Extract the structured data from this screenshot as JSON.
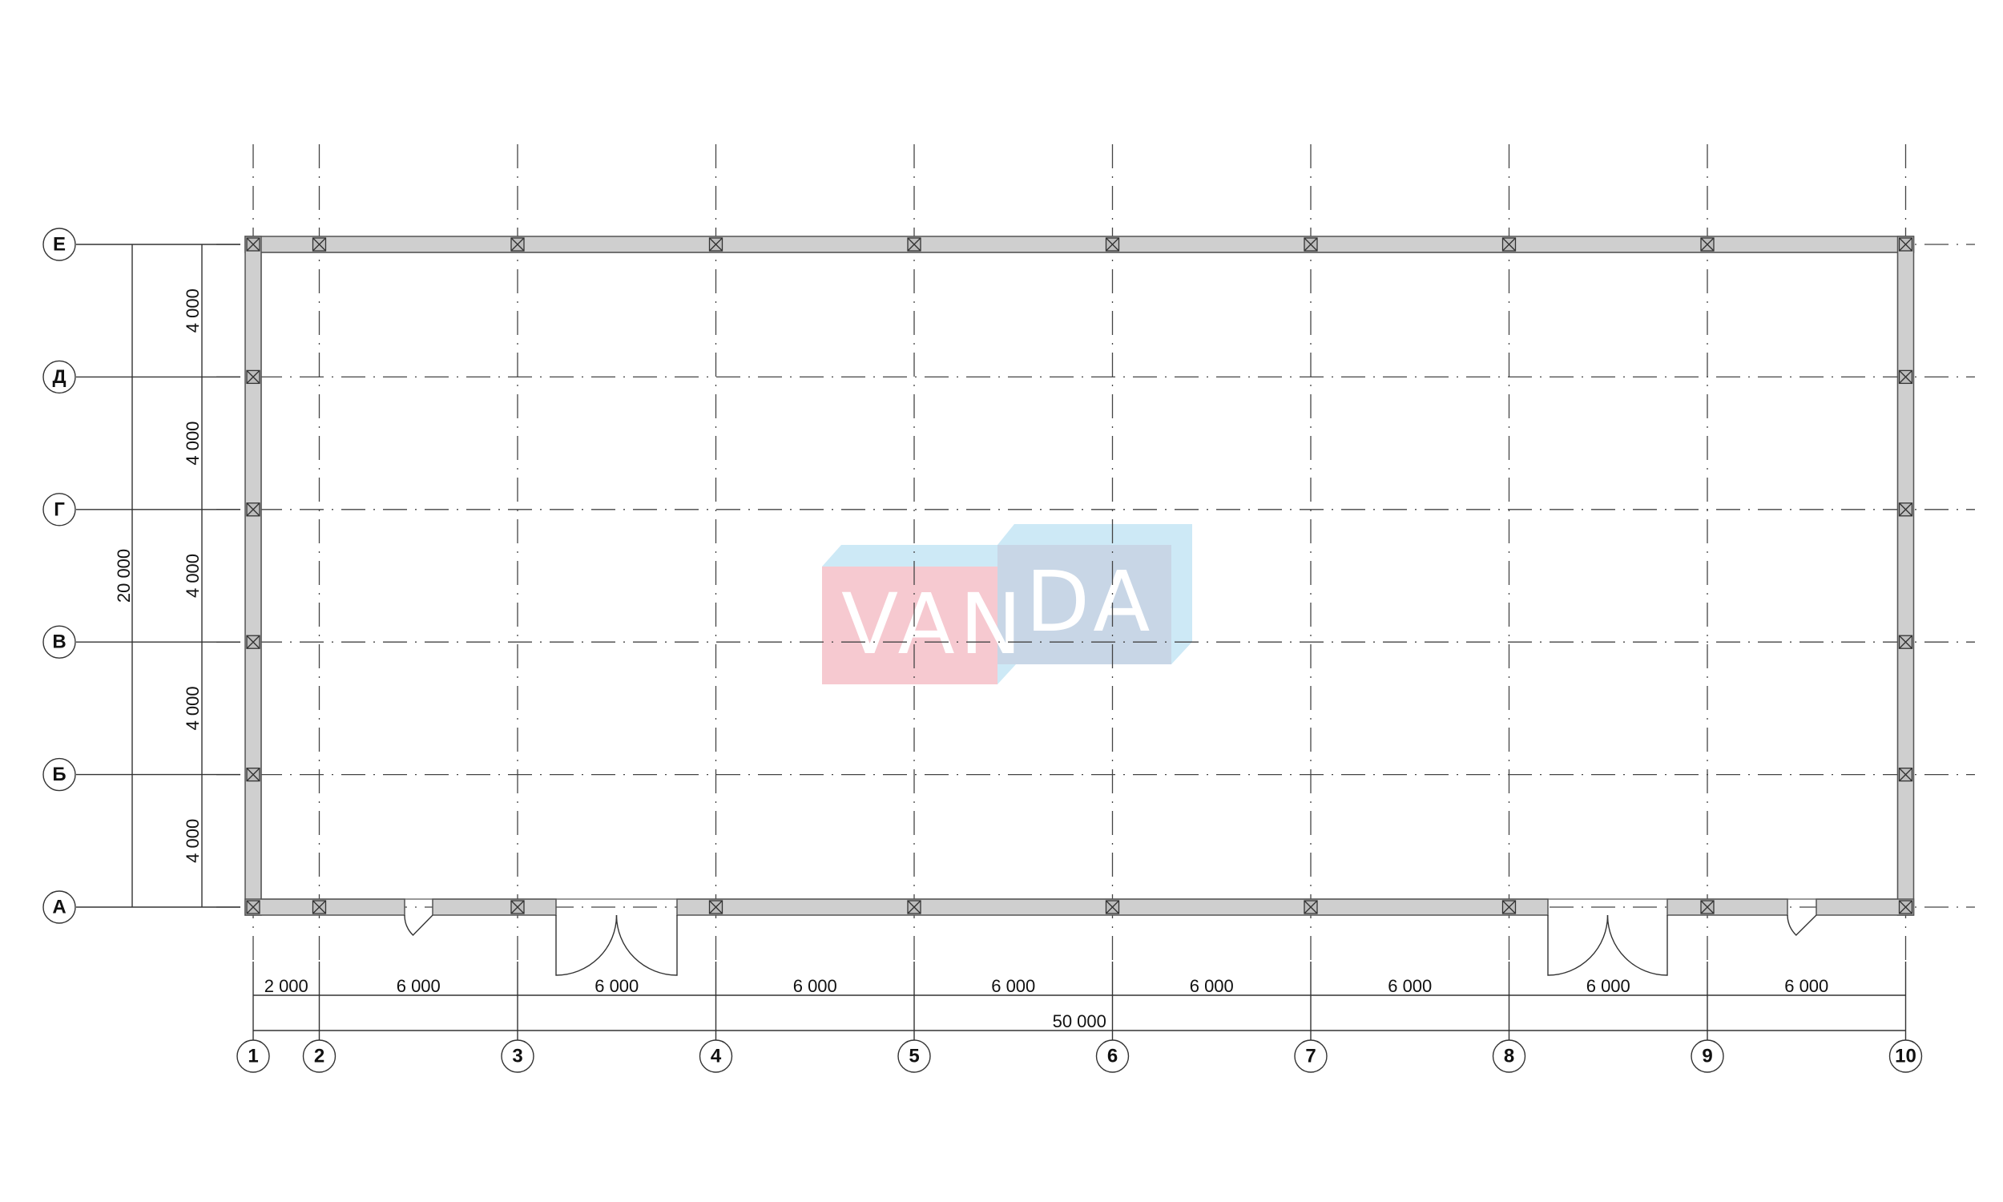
{
  "columns": {
    "labels": [
      "1",
      "2",
      "3",
      "4",
      "5",
      "6",
      "7",
      "8",
      "9",
      "10"
    ],
    "spacings_mm": [
      2000,
      6000,
      6000,
      6000,
      6000,
      6000,
      6000,
      6000,
      6000
    ],
    "spacing_labels": [
      "2 000",
      "6 000",
      "6 000",
      "6 000",
      "6 000",
      "6 000",
      "6 000",
      "6 000",
      "6 000"
    ],
    "total_label": "50 000"
  },
  "rows": {
    "labels": [
      "Е",
      "Д",
      "Г",
      "В",
      "Б",
      "А"
    ],
    "spacing_labels": [
      "4 000",
      "4 000",
      "4 000",
      "4 000",
      "4 000"
    ],
    "total_label": "20 000"
  },
  "doors": [
    {
      "type": "single",
      "between_axes": [
        "2",
        "3"
      ]
    },
    {
      "type": "double",
      "between_axes": [
        "3",
        "4"
      ]
    },
    {
      "type": "double",
      "between_axes": [
        "8",
        "9"
      ]
    },
    {
      "type": "single",
      "between_axes": [
        "9",
        "10"
      ]
    }
  ],
  "watermark": {
    "text_left": "VAN",
    "text_right": "DA",
    "colors": {
      "pink": "#f6c9d0",
      "slate": "#c8d6e6",
      "light_blue": "#cde9f6"
    }
  },
  "colors": {
    "wall_fill": "#cfcfcf",
    "line": "#333333"
  }
}
